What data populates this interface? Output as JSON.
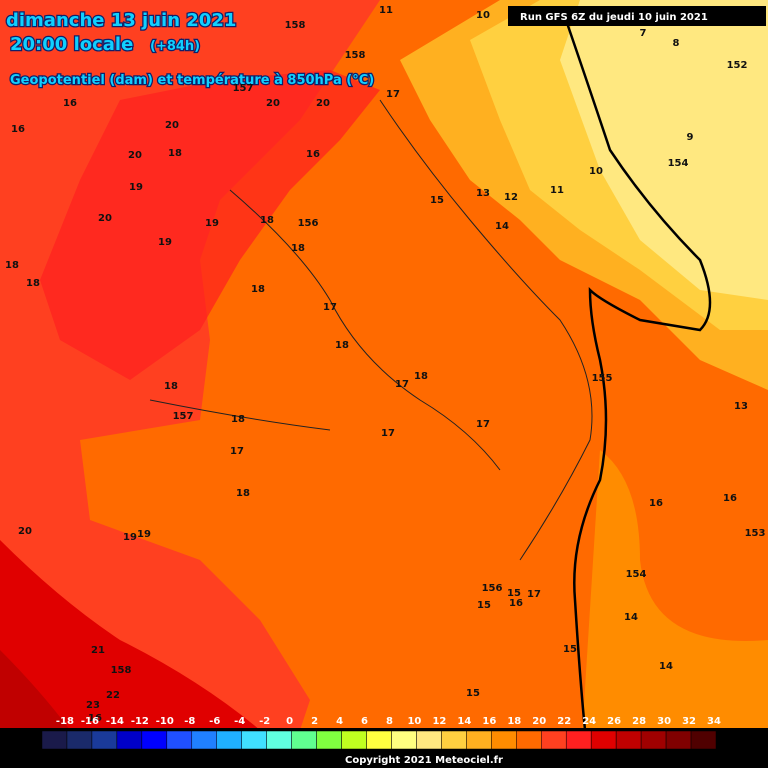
{
  "header": {
    "date": "dimanche 13 juin 2021",
    "time": "20:00 locale",
    "lead": "(+84h)",
    "subtitle": "Geopotentiel (dam) et température à 850hPa (°C)",
    "run": "Run GFS 6Z du jeudi 10 juin 2021"
  },
  "map_labels": [
    11,
    10,
    158,
    7,
    8,
    16,
    158,
    152,
    157,
    20,
    20,
    17,
    16,
    20,
    18,
    20,
    16,
    9,
    154,
    10,
    19,
    13,
    12,
    11,
    15,
    20,
    19,
    18,
    156,
    14,
    19,
    18,
    18,
    18,
    18,
    17,
    18,
    155,
    17,
    18,
    18,
    157,
    18,
    13,
    17,
    17,
    17,
    18,
    16,
    16,
    153,
    20,
    19,
    19,
    154,
    156,
    15,
    15,
    16,
    17,
    14,
    15,
    21,
    158,
    14,
    22,
    15,
    23,
    16
  ],
  "colorbar": {
    "labels": [
      -18,
      -16,
      -14,
      -12,
      -10,
      -8,
      -6,
      -4,
      -2,
      0,
      2,
      4,
      6,
      8,
      10,
      12,
      14,
      16,
      18,
      20,
      22,
      24,
      26,
      28,
      30,
      32,
      34
    ],
    "colors": [
      "#1a1a4a",
      "#1a2a6a",
      "#1a3a9a",
      "#0000c8",
      "#0000ff",
      "#2050ff",
      "#2080ff",
      "#20b0ff",
      "#40e0ff",
      "#60ffe0",
      "#60ff90",
      "#80ff40",
      "#c0ff20",
      "#ffff40",
      "#ffff80",
      "#ffe880",
      "#ffd040",
      "#ffb020",
      "#ff8c00",
      "#ff6a00",
      "#ff4020",
      "#ff2020",
      "#e00000",
      "#c00000",
      "#a00000",
      "#800000",
      "#500000"
    ]
  },
  "footer": "Copyright 2021 Meteociel.fr"
}
